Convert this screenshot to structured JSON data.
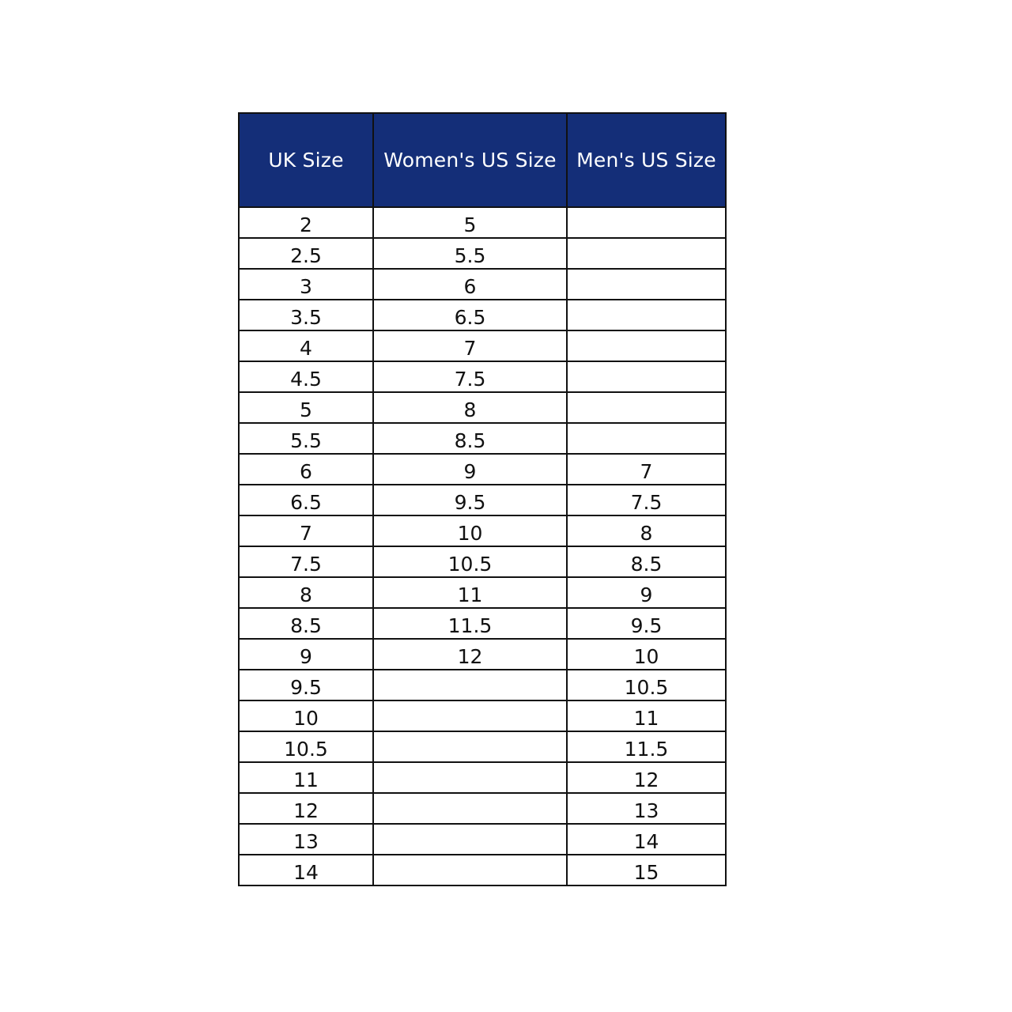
{
  "table": {
    "headers": [
      "UK Size",
      "Women's US Size",
      "Men's US Size"
    ],
    "rows": [
      [
        "2",
        "5",
        ""
      ],
      [
        "2.5",
        "5.5",
        ""
      ],
      [
        "3",
        "6",
        ""
      ],
      [
        "3.5",
        "6.5",
        ""
      ],
      [
        "4",
        "7",
        ""
      ],
      [
        "4.5",
        "7.5",
        ""
      ],
      [
        "5",
        "8",
        ""
      ],
      [
        "5.5",
        "8.5",
        ""
      ],
      [
        "6",
        "9",
        "7"
      ],
      [
        "6.5",
        "9.5",
        "7.5"
      ],
      [
        "7",
        "10",
        "8"
      ],
      [
        "7.5",
        "10.5",
        "8.5"
      ],
      [
        "8",
        "11",
        "9"
      ],
      [
        "8.5",
        "11.5",
        "9.5"
      ],
      [
        "9",
        "12",
        "10"
      ],
      [
        "9.5",
        "",
        "10.5"
      ],
      [
        "10",
        "",
        "11"
      ],
      [
        "10.5",
        "",
        "11.5"
      ],
      [
        "11",
        "",
        "12"
      ],
      [
        "12",
        "",
        "13"
      ],
      [
        "13",
        "",
        "14"
      ],
      [
        "14",
        "",
        "15"
      ]
    ]
  },
  "colors": {
    "header_bg": "#142e78",
    "header_text": "#ffffff",
    "border": "#111111"
  }
}
